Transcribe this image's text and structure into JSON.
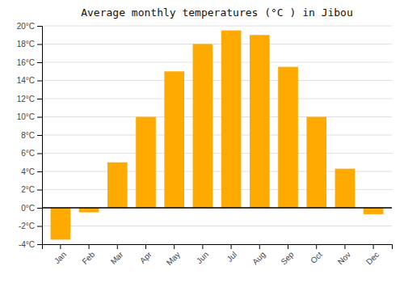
{
  "chart_data": {
    "type": "bar",
    "title": "Average monthly temperatures (°C ) in Jibou",
    "categories": [
      "Jan",
      "Feb",
      "Mar",
      "Apr",
      "May",
      "Jun",
      "Jul",
      "Aug",
      "Sep",
      "Oct",
      "Nov",
      "Dec"
    ],
    "values": [
      -3.5,
      -0.5,
      5.0,
      10.0,
      15.0,
      18.0,
      19.5,
      19.0,
      15.5,
      10.0,
      4.3,
      -0.7
    ],
    "color": "#FFAA00",
    "ylim": [
      -4,
      20
    ],
    "yticks": [
      {
        "value": -4,
        "label": "-4°C"
      },
      {
        "value": -2,
        "label": "-2°C"
      },
      {
        "value": 0,
        "label": "0°C"
      },
      {
        "value": 2,
        "label": "2°C"
      },
      {
        "value": 4,
        "label": "4°C"
      },
      {
        "value": 6,
        "label": "6°C"
      },
      {
        "value": 8,
        "label": "8°C"
      },
      {
        "value": 10,
        "label": "10°C"
      },
      {
        "value": 12,
        "label": "12°C"
      },
      {
        "value": 14,
        "label": "14°C"
      },
      {
        "value": 16,
        "label": "16°C"
      },
      {
        "value": 18,
        "label": "18°C"
      },
      {
        "value": 20,
        "label": "20°C"
      }
    ],
    "grid": true
  }
}
